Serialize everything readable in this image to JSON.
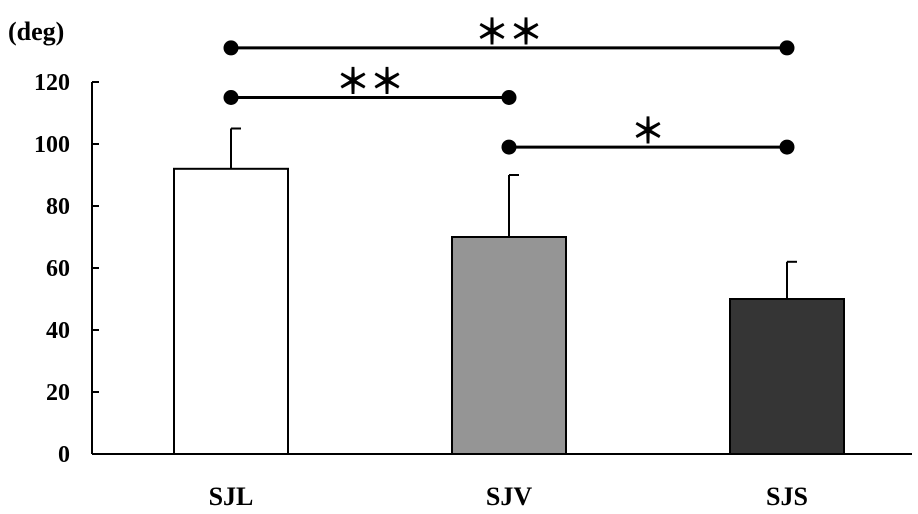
{
  "chart_data": {
    "type": "bar",
    "unit_label": "(deg)",
    "categories": [
      "SJL",
      "SJV",
      "SJS"
    ],
    "values": [
      92,
      70,
      50
    ],
    "errors": [
      13,
      20,
      12
    ],
    "bar_colors": [
      "#ffffff",
      "#959595",
      "#353535"
    ],
    "ylim": [
      0,
      120
    ],
    "yticks": [
      "0",
      "20",
      "40",
      "60",
      "80",
      "100",
      "120"
    ],
    "grid": false,
    "significance": [
      {
        "from": 0,
        "to": 2,
        "level": 131,
        "label": "＊＊"
      },
      {
        "from": 0,
        "to": 1,
        "level": 115,
        "label": "＊＊"
      },
      {
        "from": 1,
        "to": 2,
        "level": 99,
        "label": "＊"
      }
    ]
  }
}
